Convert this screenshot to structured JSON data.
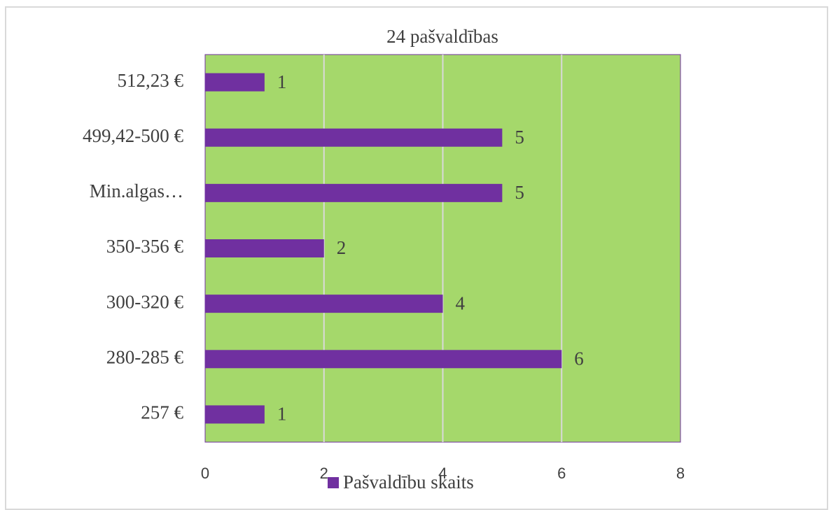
{
  "chart_data": {
    "type": "bar",
    "orientation": "horizontal",
    "title": "24 pašvaldības",
    "categories": [
      "257 €",
      "280-285 €",
      "300-320 €",
      "350-356 €",
      "Min.algas…",
      "499,42-500 €",
      "512,23 €"
    ],
    "series": [
      {
        "name": "Pašvaldību skaits",
        "color": "#7030a0",
        "values": [
          1,
          6,
          4,
          2,
          5,
          5,
          1
        ]
      }
    ],
    "xlim": [
      0,
      8
    ],
    "xticks": [
      0,
      2,
      4,
      6,
      8
    ],
    "grid": true,
    "plot_background": "#a5d86b",
    "legend": "bottom"
  }
}
